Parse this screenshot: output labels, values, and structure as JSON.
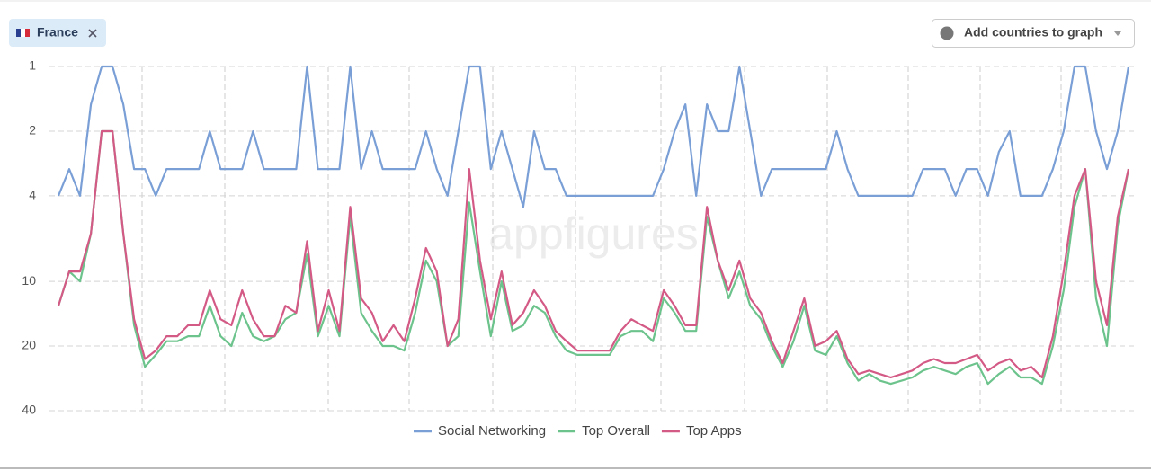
{
  "filter": {
    "chip": "France",
    "button": "Add countries to graph"
  },
  "chart_data": {
    "type": "line",
    "watermark": "appfigures",
    "log_scale": true,
    "inverted": true,
    "grid": true,
    "ylim": [
      1,
      40
    ],
    "yticks": [
      1,
      2,
      4,
      10,
      20,
      40
    ],
    "series": [
      {
        "name": "Social Networking",
        "color": "#7a9fd6",
        "values": [
          4,
          3,
          4,
          1.5,
          1,
          1,
          1.5,
          3,
          3,
          4,
          3,
          3,
          3,
          3,
          2,
          3,
          3,
          3,
          2,
          3,
          3,
          3,
          3,
          1,
          3,
          3,
          3,
          1,
          3,
          2,
          3,
          3,
          3,
          3,
          2,
          3,
          4,
          2,
          1,
          1,
          3,
          2,
          3,
          4.5,
          2,
          3,
          3,
          4,
          4,
          4,
          4,
          4,
          4,
          4,
          4,
          4,
          3,
          2,
          1.5,
          4,
          1.5,
          2,
          2,
          1,
          2,
          4,
          3,
          3,
          3,
          3,
          3,
          3,
          2,
          3,
          4,
          4,
          4,
          4,
          4,
          4,
          3,
          3,
          3,
          4,
          3,
          3,
          4,
          2.5,
          2,
          4,
          4,
          4,
          3,
          2,
          1,
          1,
          2,
          3,
          2,
          1
        ]
      },
      {
        "name": "Top Overall",
        "color": "#6cc38c",
        "values": [
          13,
          9,
          10,
          6,
          2,
          2,
          6,
          16,
          25,
          22,
          19,
          19,
          18,
          18,
          13,
          18,
          20,
          14,
          18,
          19,
          18,
          15,
          14,
          7.5,
          18,
          13,
          18,
          5,
          14,
          17,
          20,
          20,
          21,
          14,
          8,
          10,
          20,
          18,
          4.3,
          9,
          18,
          10,
          17,
          16,
          13,
          14,
          18,
          21,
          22,
          22,
          22,
          22,
          18,
          17,
          17,
          19,
          12,
          14,
          17,
          17,
          5,
          8,
          12,
          9,
          13,
          15,
          20,
          25,
          19,
          13,
          21,
          22,
          18,
          24,
          29,
          27,
          29,
          30,
          29,
          28,
          26,
          25,
          26,
          27,
          25,
          24,
          30,
          27,
          25,
          28,
          28,
          30,
          20,
          11,
          4.5,
          3,
          12,
          20,
          5.5,
          3
        ]
      },
      {
        "name": "Top Apps",
        "color": "#d45a86",
        "values": [
          13,
          9,
          9,
          6,
          2,
          2,
          6,
          15,
          23,
          21,
          18,
          18,
          16,
          16,
          11,
          15,
          16,
          11,
          15,
          18,
          18,
          13,
          14,
          6.5,
          17,
          11,
          17,
          4.5,
          12,
          14,
          19,
          16,
          19,
          12,
          7,
          9,
          20,
          15,
          3,
          8,
          15,
          9,
          16,
          14,
          11,
          13,
          17,
          19,
          21,
          21,
          21,
          21,
          17,
          15,
          16,
          17,
          11,
          13,
          16,
          16,
          4.5,
          8,
          11,
          8,
          12,
          14,
          19,
          24,
          17,
          12,
          20,
          19,
          17,
          23,
          27,
          26,
          27,
          28,
          27,
          26,
          24,
          23,
          24,
          24,
          23,
          22,
          26,
          24,
          23,
          26,
          25,
          28,
          18,
          9,
          4,
          3,
          10,
          16,
          5,
          3
        ]
      }
    ]
  }
}
